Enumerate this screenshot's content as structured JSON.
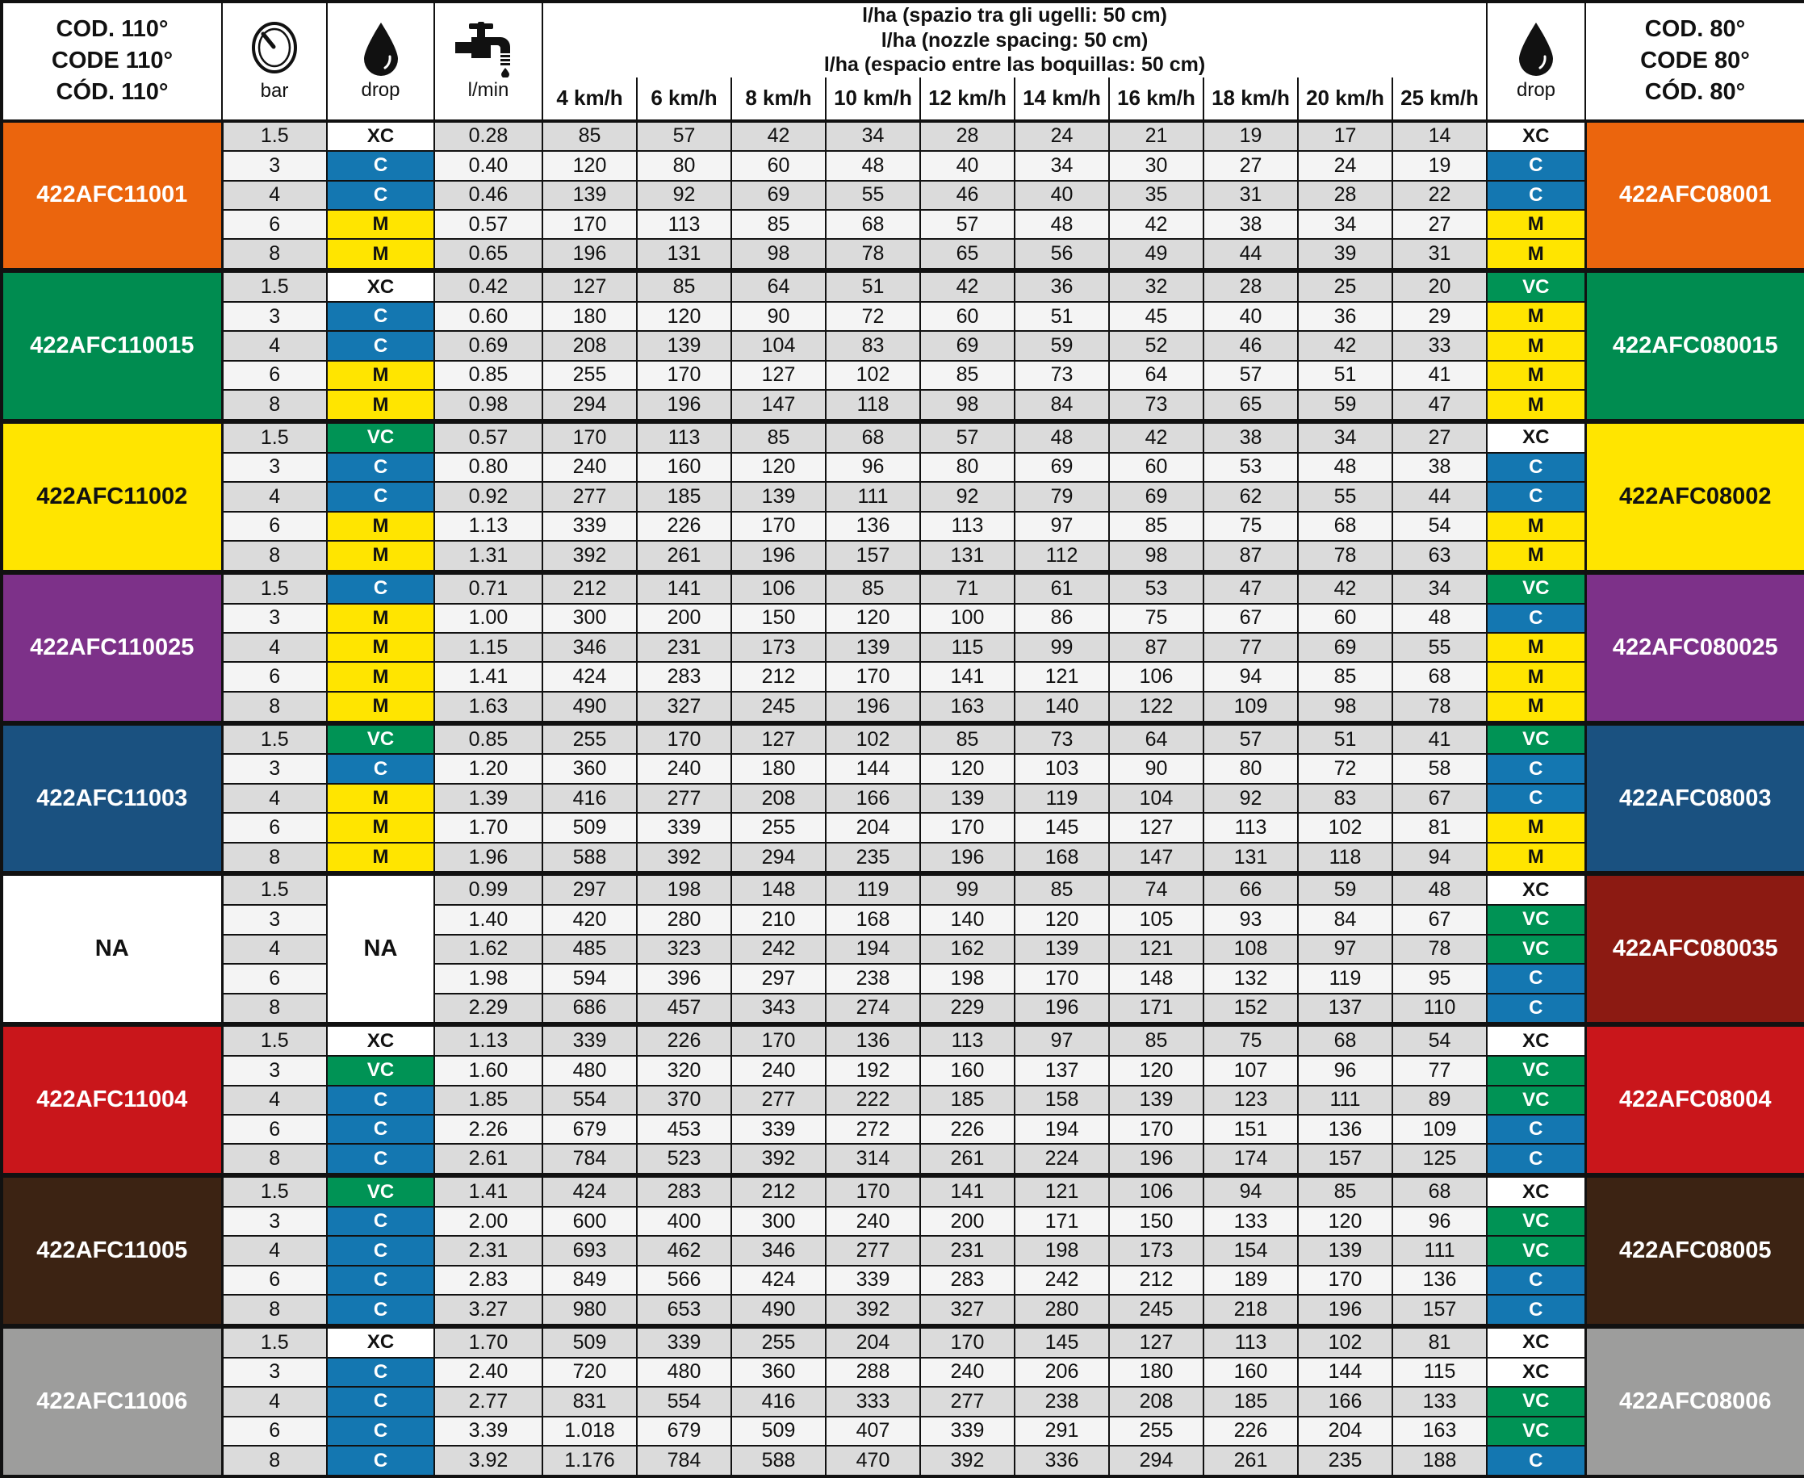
{
  "header": {
    "left_code_title": "COD. 110°\nCODE 110°\nCÓD. 110°",
    "right_code_title": "COD. 80°\nCODE 80°\nCÓD. 80°",
    "bar_label": "bar",
    "drop_label": "drop",
    "lmin_label": "l/min",
    "lha_line1": "l/ha (spazio tra gli ugelli: 50 cm)",
    "lha_line2": "l/ha (nozzle spacing: 50 cm)",
    "lha_line3": "l/ha (espacio entre las boquillas: 50 cm)",
    "speed_headers": [
      "4 km/h",
      "6 km/h",
      "8 km/h",
      "10 km/h",
      "12 km/h",
      "14 km/h",
      "16 km/h",
      "18 km/h",
      "20 km/h",
      "25 km/h"
    ],
    "icons": [
      "gauge-icon",
      "drop-icon",
      "faucet-icon",
      "drop-icon"
    ]
  },
  "drop_colors": {
    "XC": {
      "bg": "#FFFFFF",
      "fg": "#111111"
    },
    "C": {
      "bg": "#1477B1",
      "fg": "#FFFFFF"
    },
    "M": {
      "bg": "#FFE500",
      "fg": "#111111"
    },
    "VC": {
      "bg": "#009355",
      "fg": "#FFFFFF"
    }
  },
  "stripe_colors": {
    "odd": "#DBDBDB",
    "even": "#F4F4F4"
  },
  "groups": [
    {
      "left_code": "422AFC11001",
      "left_bg": "#EB650D",
      "left_fg": "#FFFFFF",
      "right_code": "422AFC08001",
      "right_bg": "#EB650D",
      "right_fg": "#FFFFFF",
      "rows": [
        {
          "bar": "1.5",
          "drop_left": "XC",
          "lmin": "0.28",
          "values": [
            "85",
            "57",
            "42",
            "34",
            "28",
            "24",
            "21",
            "19",
            "17",
            "14"
          ],
          "drop_right": "XC"
        },
        {
          "bar": "3",
          "drop_left": "C",
          "lmin": "0.40",
          "values": [
            "120",
            "80",
            "60",
            "48",
            "40",
            "34",
            "30",
            "27",
            "24",
            "19"
          ],
          "drop_right": "C"
        },
        {
          "bar": "4",
          "drop_left": "C",
          "lmin": "0.46",
          "values": [
            "139",
            "92",
            "69",
            "55",
            "46",
            "40",
            "35",
            "31",
            "28",
            "22"
          ],
          "drop_right": "C"
        },
        {
          "bar": "6",
          "drop_left": "M",
          "lmin": "0.57",
          "values": [
            "170",
            "113",
            "85",
            "68",
            "57",
            "48",
            "42",
            "38",
            "34",
            "27"
          ],
          "drop_right": "M"
        },
        {
          "bar": "8",
          "drop_left": "M",
          "lmin": "0.65",
          "values": [
            "196",
            "131",
            "98",
            "78",
            "65",
            "56",
            "49",
            "44",
            "39",
            "31"
          ],
          "drop_right": "M"
        }
      ]
    },
    {
      "left_code": "422AFC110015",
      "left_bg": "#008C50",
      "left_fg": "#FFFFFF",
      "right_code": "422AFC080015",
      "right_bg": "#008C50",
      "right_fg": "#FFFFFF",
      "rows": [
        {
          "bar": "1.5",
          "drop_left": "XC",
          "lmin": "0.42",
          "values": [
            "127",
            "85",
            "64",
            "51",
            "42",
            "36",
            "32",
            "28",
            "25",
            "20"
          ],
          "drop_right": "VC"
        },
        {
          "bar": "3",
          "drop_left": "C",
          "lmin": "0.60",
          "values": [
            "180",
            "120",
            "90",
            "72",
            "60",
            "51",
            "45",
            "40",
            "36",
            "29"
          ],
          "drop_right": "M"
        },
        {
          "bar": "4",
          "drop_left": "C",
          "lmin": "0.69",
          "values": [
            "208",
            "139",
            "104",
            "83",
            "69",
            "59",
            "52",
            "46",
            "42",
            "33"
          ],
          "drop_right": "M"
        },
        {
          "bar": "6",
          "drop_left": "M",
          "lmin": "0.85",
          "values": [
            "255",
            "170",
            "127",
            "102",
            "85",
            "73",
            "64",
            "57",
            "51",
            "41"
          ],
          "drop_right": "M"
        },
        {
          "bar": "8",
          "drop_left": "M",
          "lmin": "0.98",
          "values": [
            "294",
            "196",
            "147",
            "118",
            "98",
            "84",
            "73",
            "65",
            "59",
            "47"
          ],
          "drop_right": "M"
        }
      ]
    },
    {
      "left_code": "422AFC11002",
      "left_bg": "#FFE500",
      "left_fg": "#111111",
      "right_code": "422AFC08002",
      "right_bg": "#FFE500",
      "right_fg": "#111111",
      "rows": [
        {
          "bar": "1.5",
          "drop_left": "VC",
          "lmin": "0.57",
          "values": [
            "170",
            "113",
            "85",
            "68",
            "57",
            "48",
            "42",
            "38",
            "34",
            "27"
          ],
          "drop_right": "XC"
        },
        {
          "bar": "3",
          "drop_left": "C",
          "lmin": "0.80",
          "values": [
            "240",
            "160",
            "120",
            "96",
            "80",
            "69",
            "60",
            "53",
            "48",
            "38"
          ],
          "drop_right": "C"
        },
        {
          "bar": "4",
          "drop_left": "C",
          "lmin": "0.92",
          "values": [
            "277",
            "185",
            "139",
            "111",
            "92",
            "79",
            "69",
            "62",
            "55",
            "44"
          ],
          "drop_right": "C"
        },
        {
          "bar": "6",
          "drop_left": "M",
          "lmin": "1.13",
          "values": [
            "339",
            "226",
            "170",
            "136",
            "113",
            "97",
            "85",
            "75",
            "68",
            "54"
          ],
          "drop_right": "M"
        },
        {
          "bar": "8",
          "drop_left": "M",
          "lmin": "1.31",
          "values": [
            "392",
            "261",
            "196",
            "157",
            "131",
            "112",
            "98",
            "87",
            "78",
            "63"
          ],
          "drop_right": "M"
        }
      ]
    },
    {
      "left_code": "422AFC110025",
      "left_bg": "#7D3189",
      "left_fg": "#FFFFFF",
      "right_code": "422AFC080025",
      "right_bg": "#7D3189",
      "right_fg": "#FFFFFF",
      "rows": [
        {
          "bar": "1.5",
          "drop_left": "C",
          "lmin": "0.71",
          "values": [
            "212",
            "141",
            "106",
            "85",
            "71",
            "61",
            "53",
            "47",
            "42",
            "34"
          ],
          "drop_right": "VC"
        },
        {
          "bar": "3",
          "drop_left": "M",
          "lmin": "1.00",
          "values": [
            "300",
            "200",
            "150",
            "120",
            "100",
            "86",
            "75",
            "67",
            "60",
            "48"
          ],
          "drop_right": "C"
        },
        {
          "bar": "4",
          "drop_left": "M",
          "lmin": "1.15",
          "values": [
            "346",
            "231",
            "173",
            "139",
            "115",
            "99",
            "87",
            "77",
            "69",
            "55"
          ],
          "drop_right": "M"
        },
        {
          "bar": "6",
          "drop_left": "M",
          "lmin": "1.41",
          "values": [
            "424",
            "283",
            "212",
            "170",
            "141",
            "121",
            "106",
            "94",
            "85",
            "68"
          ],
          "drop_right": "M"
        },
        {
          "bar": "8",
          "drop_left": "M",
          "lmin": "1.63",
          "values": [
            "490",
            "327",
            "245",
            "196",
            "163",
            "140",
            "122",
            "109",
            "98",
            "78"
          ],
          "drop_right": "M"
        }
      ]
    },
    {
      "left_code": "422AFC11003",
      "left_bg": "#1A5180",
      "left_fg": "#FFFFFF",
      "right_code": "422AFC08003",
      "right_bg": "#1A5180",
      "right_fg": "#FFFFFF",
      "rows": [
        {
          "bar": "1.5",
          "drop_left": "VC",
          "lmin": "0.85",
          "values": [
            "255",
            "170",
            "127",
            "102",
            "85",
            "73",
            "64",
            "57",
            "51",
            "41"
          ],
          "drop_right": "VC"
        },
        {
          "bar": "3",
          "drop_left": "C",
          "lmin": "1.20",
          "values": [
            "360",
            "240",
            "180",
            "144",
            "120",
            "103",
            "90",
            "80",
            "72",
            "58"
          ],
          "drop_right": "C"
        },
        {
          "bar": "4",
          "drop_left": "M",
          "lmin": "1.39",
          "values": [
            "416",
            "277",
            "208",
            "166",
            "139",
            "119",
            "104",
            "92",
            "83",
            "67"
          ],
          "drop_right": "C"
        },
        {
          "bar": "6",
          "drop_left": "M",
          "lmin": "1.70",
          "values": [
            "509",
            "339",
            "255",
            "204",
            "170",
            "145",
            "127",
            "113",
            "102",
            "81"
          ],
          "drop_right": "M"
        },
        {
          "bar": "8",
          "drop_left": "M",
          "lmin": "1.96",
          "values": [
            "588",
            "392",
            "294",
            "235",
            "196",
            "168",
            "147",
            "131",
            "118",
            "94"
          ],
          "drop_right": "M"
        }
      ]
    },
    {
      "left_code": "NA",
      "left_bg": "#FFFFFF",
      "left_fg": "#111111",
      "merged_drop": "NA",
      "right_code": "422AFC080035",
      "right_bg": "#8C1A12",
      "right_fg": "#FFFFFF",
      "rows": [
        {
          "bar": "1.5",
          "drop_left": null,
          "lmin": "0.99",
          "values": [
            "297",
            "198",
            "148",
            "119",
            "99",
            "85",
            "74",
            "66",
            "59",
            "48"
          ],
          "drop_right": "XC"
        },
        {
          "bar": "3",
          "drop_left": null,
          "lmin": "1.40",
          "values": [
            "420",
            "280",
            "210",
            "168",
            "140",
            "120",
            "105",
            "93",
            "84",
            "67"
          ],
          "drop_right": "VC"
        },
        {
          "bar": "4",
          "drop_left": null,
          "lmin": "1.62",
          "values": [
            "485",
            "323",
            "242",
            "194",
            "162",
            "139",
            "121",
            "108",
            "97",
            "78"
          ],
          "drop_right": "VC"
        },
        {
          "bar": "6",
          "drop_left": null,
          "lmin": "1.98",
          "values": [
            "594",
            "396",
            "297",
            "238",
            "198",
            "170",
            "148",
            "132",
            "119",
            "95"
          ],
          "drop_right": "C"
        },
        {
          "bar": "8",
          "drop_left": null,
          "lmin": "2.29",
          "values": [
            "686",
            "457",
            "343",
            "274",
            "229",
            "196",
            "171",
            "152",
            "137",
            "110"
          ],
          "drop_right": "C"
        }
      ]
    },
    {
      "left_code": "422AFC11004",
      "left_bg": "#C9161B",
      "left_fg": "#FFFFFF",
      "right_code": "422AFC08004",
      "right_bg": "#C9161B",
      "right_fg": "#FFFFFF",
      "rows": [
        {
          "bar": "1.5",
          "drop_left": "XC",
          "lmin": "1.13",
          "values": [
            "339",
            "226",
            "170",
            "136",
            "113",
            "97",
            "85",
            "75",
            "68",
            "54"
          ],
          "drop_right": "XC"
        },
        {
          "bar": "3",
          "drop_left": "VC",
          "lmin": "1.60",
          "values": [
            "480",
            "320",
            "240",
            "192",
            "160",
            "137",
            "120",
            "107",
            "96",
            "77"
          ],
          "drop_right": "VC"
        },
        {
          "bar": "4",
          "drop_left": "C",
          "lmin": "1.85",
          "values": [
            "554",
            "370",
            "277",
            "222",
            "185",
            "158",
            "139",
            "123",
            "111",
            "89"
          ],
          "drop_right": "VC"
        },
        {
          "bar": "6",
          "drop_left": "C",
          "lmin": "2.26",
          "values": [
            "679",
            "453",
            "339",
            "272",
            "226",
            "194",
            "170",
            "151",
            "136",
            "109"
          ],
          "drop_right": "C"
        },
        {
          "bar": "8",
          "drop_left": "C",
          "lmin": "2.61",
          "values": [
            "784",
            "523",
            "392",
            "314",
            "261",
            "224",
            "196",
            "174",
            "157",
            "125"
          ],
          "drop_right": "C"
        }
      ]
    },
    {
      "left_code": "422AFC11005",
      "left_bg": "#3C2313",
      "left_fg": "#FFFFFF",
      "right_code": "422AFC08005",
      "right_bg": "#3C2313",
      "right_fg": "#FFFFFF",
      "rows": [
        {
          "bar": "1.5",
          "drop_left": "VC",
          "lmin": "1.41",
          "values": [
            "424",
            "283",
            "212",
            "170",
            "141",
            "121",
            "106",
            "94",
            "85",
            "68"
          ],
          "drop_right": "XC"
        },
        {
          "bar": "3",
          "drop_left": "C",
          "lmin": "2.00",
          "values": [
            "600",
            "400",
            "300",
            "240",
            "200",
            "171",
            "150",
            "133",
            "120",
            "96"
          ],
          "drop_right": "VC"
        },
        {
          "bar": "4",
          "drop_left": "C",
          "lmin": "2.31",
          "values": [
            "693",
            "462",
            "346",
            "277",
            "231",
            "198",
            "173",
            "154",
            "139",
            "111"
          ],
          "drop_right": "VC"
        },
        {
          "bar": "6",
          "drop_left": "C",
          "lmin": "2.83",
          "values": [
            "849",
            "566",
            "424",
            "339",
            "283",
            "242",
            "212",
            "189",
            "170",
            "136"
          ],
          "drop_right": "C"
        },
        {
          "bar": "8",
          "drop_left": "C",
          "lmin": "3.27",
          "values": [
            "980",
            "653",
            "490",
            "392",
            "327",
            "280",
            "245",
            "218",
            "196",
            "157"
          ],
          "drop_right": "C"
        }
      ]
    },
    {
      "left_code": "422AFC11006",
      "left_bg": "#9D9D9C",
      "left_fg": "#FFFFFF",
      "right_code": "422AFC08006",
      "right_bg": "#9D9D9C",
      "right_fg": "#FFFFFF",
      "rows": [
        {
          "bar": "1.5",
          "drop_left": "XC",
          "lmin": "1.70",
          "values": [
            "509",
            "339",
            "255",
            "204",
            "170",
            "145",
            "127",
            "113",
            "102",
            "81"
          ],
          "drop_right": "XC"
        },
        {
          "bar": "3",
          "drop_left": "C",
          "lmin": "2.40",
          "values": [
            "720",
            "480",
            "360",
            "288",
            "240",
            "206",
            "180",
            "160",
            "144",
            "115"
          ],
          "drop_right": "XC"
        },
        {
          "bar": "4",
          "drop_left": "C",
          "lmin": "2.77",
          "values": [
            "831",
            "554",
            "416",
            "333",
            "277",
            "238",
            "208",
            "185",
            "166",
            "133"
          ],
          "drop_right": "VC"
        },
        {
          "bar": "6",
          "drop_left": "C",
          "lmin": "3.39",
          "values": [
            "1.018",
            "679",
            "509",
            "407",
            "339",
            "291",
            "255",
            "226",
            "204",
            "163"
          ],
          "drop_right": "VC"
        },
        {
          "bar": "8",
          "drop_left": "C",
          "lmin": "3.92",
          "values": [
            "1.176",
            "784",
            "588",
            "470",
            "392",
            "336",
            "294",
            "261",
            "235",
            "188"
          ],
          "drop_right": "C"
        }
      ]
    }
  ]
}
